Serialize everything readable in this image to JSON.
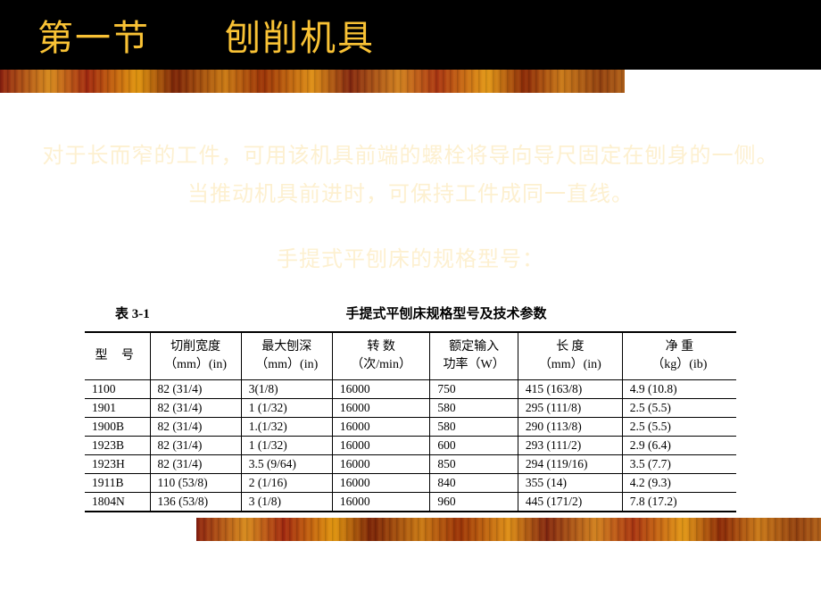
{
  "header": {
    "title_left": "第一节",
    "title_right": "刨削机具"
  },
  "ghost_paragraph": "对于长而窄的工件，可用该机具前端的螺栓将导向导尺固定在刨身的一侧。当推动机具前进时，可保持工件成同一直线。",
  "ghost_subtitle": "手提式平刨床的规格型号：",
  "table": {
    "caption_left": "表 3-1",
    "caption_center": "手提式平刨床规格型号及技术参数",
    "columns": [
      {
        "main": "型 号",
        "sub": ""
      },
      {
        "main": "切削宽度",
        "sub": "（mm）(in)"
      },
      {
        "main": "最大刨深",
        "sub": "（mm）(in)"
      },
      {
        "main": "转 数",
        "sub": "（次/min）"
      },
      {
        "main": "额定输入",
        "sub": "功率（W）"
      },
      {
        "main": "长 度",
        "sub": "（mm）(in)"
      },
      {
        "main": "净 重",
        "sub": "（kg）(ib)"
      }
    ],
    "rows": [
      [
        "1100",
        "82 (31/4)",
        "3(1/8)",
        "16000",
        "750",
        "415 (163/8)",
        "4.9 (10.8)"
      ],
      [
        "1901",
        "82 (31/4)",
        "1 (1/32)",
        "16000",
        "580",
        "295 (111/8)",
        "2.5 (5.5)"
      ],
      [
        "1900B",
        "82 (31/4)",
        "1.(1/32)",
        "16000",
        "580",
        "290 (113/8)",
        "2.5 (5.5)"
      ],
      [
        "1923B",
        "82 (31/4)",
        "1 (1/32)",
        "16000",
        "600",
        "293 (111/2)",
        "2.9 (6.4)"
      ],
      [
        "1923H",
        "82 (31/4)",
        "3.5 (9/64)",
        "16000",
        "850",
        "294 (119/16)",
        "3.5 (7.7)"
      ],
      [
        "1911B",
        "110 (53/8)",
        "2 (1/16)",
        "16000",
        "840",
        "355 (14)",
        "4.2 (9.3)"
      ],
      [
        "1804N",
        "136 (53/8)",
        "3 (1/8)",
        "16000",
        "960",
        "445 (171/2)",
        "7.8 (17.2)"
      ]
    ]
  },
  "colors": {
    "bg": "#ffffff",
    "title_bg": "#000000",
    "title_fg": "#f9c235",
    "ghost": "#fdf0d0",
    "border": "#000000"
  }
}
